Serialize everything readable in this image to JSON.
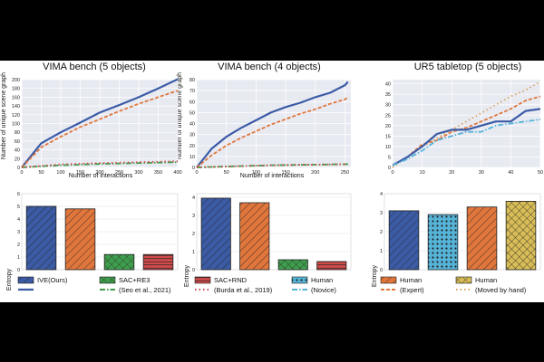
{
  "chart_data": [
    {
      "type": "line",
      "title": "VIMA bench (5 objects)",
      "xlabel": "Number of interactions",
      "ylabel": "Number of unique scene graph",
      "xlim": [
        0,
        400
      ],
      "ylim": [
        0,
        200
      ],
      "xticks": [
        0,
        50,
        100,
        150,
        200,
        250,
        300,
        350,
        400
      ],
      "yticks": [
        0,
        20,
        40,
        60,
        80,
        100,
        120,
        140,
        160,
        180,
        200
      ],
      "series": [
        {
          "name": "IVE(Ours)",
          "color": "#3b5ba5",
          "style": "solid",
          "x": [
            0,
            50,
            100,
            150,
            200,
            250,
            300,
            350,
            400
          ],
          "y": [
            0,
            55,
            80,
            102,
            125,
            142,
            160,
            180,
            201
          ]
        },
        {
          "name": "Human (Expert)",
          "color": "#e0763c",
          "style": "dashed",
          "x": [
            0,
            50,
            100,
            150,
            200,
            250,
            300,
            350,
            400
          ],
          "y": [
            0,
            46,
            70,
            92,
            110,
            128,
            145,
            160,
            175
          ]
        },
        {
          "name": "SAC+RE3",
          "color": "#3f9e4d",
          "style": "dashdot",
          "x": [
            0,
            100,
            200,
            300,
            400
          ],
          "y": [
            0,
            5,
            8,
            10,
            12
          ]
        },
        {
          "name": "SAC+RND",
          "color": "#d14b4b",
          "style": "dotted",
          "x": [
            0,
            100,
            200,
            300,
            400
          ],
          "y": [
            0,
            7,
            10,
            12,
            14
          ]
        }
      ]
    },
    {
      "type": "line",
      "title": "VIMA bench (4 objects)",
      "xlabel": "Number of interactions",
      "ylabel": "Number of unique scene graph",
      "xlim": [
        0,
        260
      ],
      "ylim": [
        0,
        80
      ],
      "xticks": [
        0,
        50,
        100,
        150,
        200,
        250
      ],
      "yticks": [
        0,
        10,
        20,
        30,
        40,
        50,
        60,
        70,
        80
      ],
      "series": [
        {
          "name": "IVE(Ours)",
          "color": "#3b5ba5",
          "style": "solid",
          "x": [
            0,
            25,
            50,
            75,
            100,
            125,
            150,
            175,
            200,
            225,
            250,
            255
          ],
          "y": [
            0,
            17,
            28,
            36,
            43,
            50,
            55,
            59,
            64,
            68,
            75,
            78
          ]
        },
        {
          "name": "Human (Expert)",
          "color": "#e0763c",
          "style": "dashed",
          "x": [
            0,
            25,
            50,
            75,
            100,
            125,
            150,
            175,
            200,
            225,
            250,
            255
          ],
          "y": [
            0,
            11,
            20,
            27,
            33,
            39,
            44,
            49,
            53,
            58,
            62,
            64
          ]
        },
        {
          "name": "SAC+RE3",
          "color": "#3f9e4d",
          "style": "dashdot",
          "x": [
            0,
            125,
            255
          ],
          "y": [
            0,
            2,
            3
          ]
        },
        {
          "name": "SAC+RND",
          "color": "#d14b4b",
          "style": "dotted",
          "x": [
            0,
            125,
            255
          ],
          "y": [
            0,
            2,
            3
          ]
        }
      ]
    },
    {
      "type": "line",
      "title": "UR5 tabletop (5 objects)",
      "xlabel": "",
      "ylabel": "",
      "xlim": [
        0,
        50
      ],
      "ylim": [
        0,
        42
      ],
      "xticks": [
        0,
        10,
        20,
        30,
        40,
        50
      ],
      "yticks": [
        0,
        5,
        10,
        15,
        20,
        25,
        30,
        35,
        40
      ],
      "series": [
        {
          "name": "Human (Moved by hand)",
          "color": "#d9a35e",
          "style": "dotted",
          "x": [
            0,
            5,
            10,
            15,
            20,
            25,
            30,
            35,
            40,
            45,
            50
          ],
          "y": [
            0,
            5,
            10,
            14,
            18,
            22,
            26,
            30,
            34,
            37,
            41
          ]
        },
        {
          "name": "Human (Expert)",
          "color": "#e0763c",
          "style": "dashed",
          "x": [
            0,
            5,
            10,
            15,
            20,
            25,
            30,
            35,
            40,
            45,
            50
          ],
          "y": [
            1,
            5,
            11,
            13,
            17,
            19,
            22,
            25,
            28,
            32,
            34
          ]
        },
        {
          "name": "IVE(Ours)",
          "color": "#3b5ba5",
          "style": "solid",
          "x": [
            0,
            5,
            10,
            15,
            20,
            25,
            30,
            35,
            40,
            45,
            50
          ],
          "y": [
            1,
            5,
            10,
            16,
            18,
            18,
            20,
            22,
            22,
            27,
            28
          ]
        },
        {
          "name": "Human (Novice)",
          "color": "#56b4d9",
          "style": "dashdot",
          "x": [
            0,
            5,
            10,
            15,
            20,
            25,
            30,
            35,
            40,
            45,
            50
          ],
          "y": [
            1,
            4,
            8,
            13,
            15,
            17,
            17,
            20,
            21,
            22,
            23
          ]
        }
      ]
    },
    {
      "type": "bar",
      "ylabel": "Entropy",
      "ylim": [
        0,
        6
      ],
      "yticks": [
        0,
        1,
        2,
        3,
        4,
        5,
        6
      ],
      "categories": [
        "IVE(Ours)",
        "Human (Expert)",
        "SAC+RE3",
        "SAC+RND"
      ],
      "values": [
        5.0,
        4.8,
        1.2,
        1.2
      ],
      "colors": [
        "#3b5ba5",
        "#e0763c",
        "#3f9e4d",
        "#d14b4b"
      ],
      "patterns": [
        "hatch",
        "hatch",
        "cross",
        "hlines"
      ]
    },
    {
      "type": "bar",
      "ylabel": "Entropy",
      "ylim": [
        0,
        4.2
      ],
      "yticks": [
        0,
        1,
        2,
        3,
        4
      ],
      "categories": [
        "IVE(Ours)",
        "Human (Expert)",
        "SAC+RE3",
        "SAC+RND"
      ],
      "values": [
        3.95,
        3.7,
        0.55,
        0.45
      ],
      "colors": [
        "#3b5ba5",
        "#e0763c",
        "#3f9e4d",
        "#d14b4b"
      ],
      "patterns": [
        "hatch",
        "hatch",
        "cross",
        "hlines"
      ]
    },
    {
      "type": "bar",
      "ylabel": "Entropy",
      "ylim": [
        0,
        4
      ],
      "yticks": [
        0,
        1,
        2,
        3,
        4
      ],
      "categories": [
        "IVE(Ours)",
        "Human (Novice)",
        "Human (Expert)",
        "Human (Moved by hand)"
      ],
      "values": [
        3.1,
        2.9,
        3.3,
        3.6
      ],
      "colors": [
        "#3b5ba5",
        "#56b4d9",
        "#e0763c",
        "#d8bd57"
      ],
      "patterns": [
        "hatch",
        "dots",
        "hatch",
        "cross"
      ]
    }
  ],
  "legend": {
    "ive": "IVE(Ours)",
    "sac_re3": "SAC+RE3",
    "seo": "(Seo et al., 2021)",
    "sac_rnd": "SAC+RND",
    "burda": "(Burda et al., 2019)",
    "human_a": "Human",
    "novice": "(Novice)",
    "human_b": "Human",
    "expert": "(Expert)",
    "human_c": "Human",
    "moved": "(Moved by hand)"
  }
}
